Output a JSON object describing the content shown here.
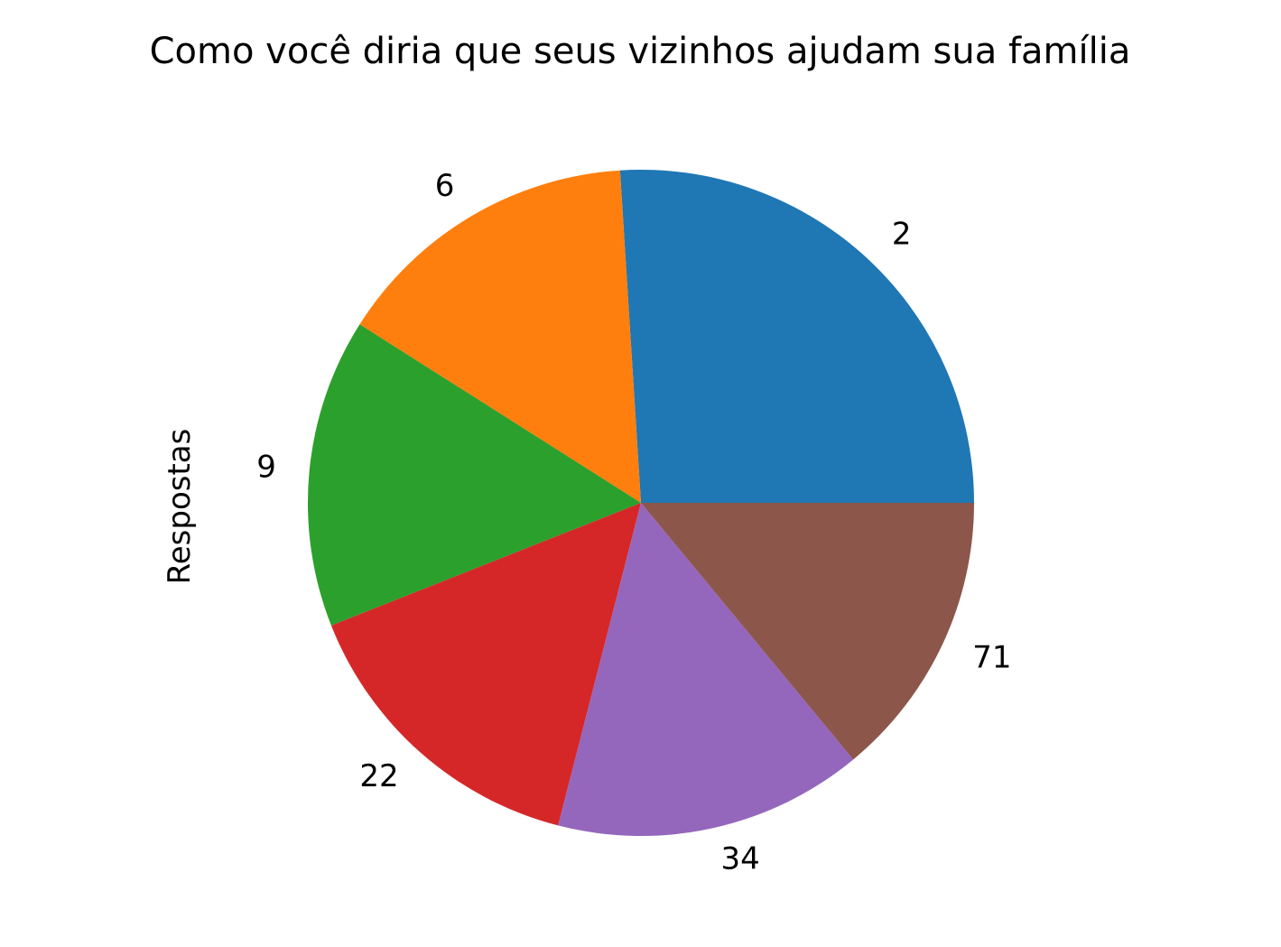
{
  "chart_data": {
    "type": "pie",
    "title": "Como você diria que seus vizinhos ajudam sua família",
    "ylabel": "Respostas",
    "start_angle_deg": 0,
    "direction": "counterclockwise",
    "slices": [
      {
        "label": "2",
        "value": 0.26,
        "color": "#1f77b4"
      },
      {
        "label": "6",
        "value": 0.15,
        "color": "#ff7f0e"
      },
      {
        "label": "9",
        "value": 0.15,
        "color": "#2ca02c"
      },
      {
        "label": "22",
        "value": 0.15,
        "color": "#d62728"
      },
      {
        "label": "34",
        "value": 0.15,
        "color": "#9467bd"
      },
      {
        "label": "71",
        "value": 0.14,
        "color": "#8c564b"
      }
    ]
  }
}
